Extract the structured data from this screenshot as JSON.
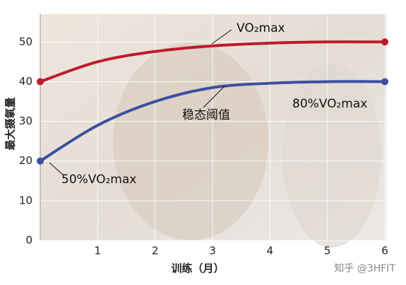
{
  "chart_data": {
    "type": "line",
    "x_label": "训练（月）",
    "y_label": "最大摄氧量",
    "x": [
      0,
      1,
      2,
      3,
      4,
      5,
      6
    ],
    "series": [
      {
        "color": "#c0192b",
        "values": [
          40,
          45,
          47.6,
          49,
          49.7,
          50,
          50
        ]
      },
      {
        "color": "#3c4fa0",
        "values": [
          20,
          29,
          35,
          38.5,
          39.6,
          40,
          40
        ]
      }
    ],
    "annotations": [
      "VO₂max",
      "稳态阈值",
      "80%VO₂max",
      "50%VO₂max"
    ],
    "watermark": "知乎 @3HFIT",
    "xlim": [
      0,
      6
    ],
    "xticks": [
      1,
      2,
      3,
      4,
      5,
      6
    ],
    "ylim": [
      0,
      57
    ],
    "yticks": [
      0,
      10,
      20,
      30,
      40,
      50
    ],
    "grid": true
  }
}
